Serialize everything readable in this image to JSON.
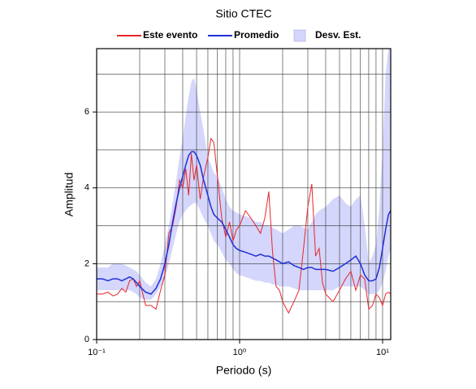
{
  "chart_data": {
    "type": "line",
    "title": "Sitio CTEC",
    "xlabel": "Periodo (s)",
    "ylabel": "Amplitud",
    "log_x": true,
    "grid": true,
    "legend": "top",
    "xlim": [
      0.1,
      11.4
    ],
    "ylim": [
      0,
      7.67
    ],
    "xticks": [
      {
        "value": 0.1,
        "label": "10⁻¹"
      },
      {
        "value": 1,
        "label": "10⁰"
      },
      {
        "value": 10,
        "label": "10¹"
      }
    ],
    "xminor": [
      0.2,
      0.3,
      0.4,
      0.5,
      0.6,
      0.7,
      0.8,
      0.9,
      2,
      3,
      4,
      5,
      6,
      7,
      8,
      9
    ],
    "yticks": [
      0,
      2,
      4,
      6
    ],
    "yminor": [
      1,
      3,
      5,
      7
    ],
    "x": [
      0.1,
      0.11,
      0.12,
      0.13,
      0.14,
      0.15,
      0.16,
      0.17,
      0.18,
      0.19,
      0.2,
      0.22,
      0.24,
      0.26,
      0.28,
      0.3,
      0.32,
      0.34,
      0.36,
      0.38,
      0.4,
      0.42,
      0.44,
      0.46,
      0.48,
      0.5,
      0.53,
      0.56,
      0.6,
      0.63,
      0.66,
      0.7,
      0.75,
      0.8,
      0.85,
      0.9,
      0.95,
      1.0,
      1.1,
      1.2,
      1.3,
      1.4,
      1.5,
      1.6,
      1.7,
      1.8,
      1.9,
      2.0,
      2.2,
      2.4,
      2.6,
      2.8,
      3.0,
      3.2,
      3.4,
      3.6,
      3.8,
      4.0,
      4.5,
      5.0,
      5.5,
      6.0,
      6.5,
      7.0,
      7.5,
      8.0,
      8.5,
      9.0,
      9.5,
      10,
      10.5,
      11,
      11.4
    ],
    "series": [
      {
        "name": "Este evento",
        "color": "#e8262b",
        "values": [
          1.2,
          1.2,
          1.25,
          1.15,
          1.2,
          1.35,
          1.25,
          1.55,
          1.6,
          1.4,
          1.55,
          0.9,
          0.9,
          0.8,
          1.3,
          1.7,
          2.8,
          3.0,
          3.5,
          4.2,
          4.0,
          4.5,
          3.8,
          4.9,
          4.2,
          4.6,
          3.7,
          4.3,
          4.8,
          5.3,
          5.2,
          4.3,
          3.2,
          2.7,
          3.1,
          2.6,
          2.9,
          3.0,
          3.4,
          3.2,
          3.0,
          2.8,
          3.2,
          3.9,
          2.3,
          1.4,
          1.3,
          1.0,
          0.7,
          1.0,
          1.3,
          2.4,
          3.5,
          4.1,
          2.2,
          2.4,
          1.5,
          1.2,
          1.0,
          1.3,
          1.6,
          1.8,
          1.3,
          1.7,
          1.6,
          0.8,
          0.9,
          1.2,
          1.1,
          0.9,
          1.2,
          1.25,
          1.2
        ]
      },
      {
        "name": "Promedio",
        "color": "#1f2fd6",
        "values": [
          1.6,
          1.6,
          1.55,
          1.6,
          1.6,
          1.55,
          1.6,
          1.65,
          1.6,
          1.5,
          1.4,
          1.25,
          1.2,
          1.35,
          1.6,
          2.0,
          2.5,
          3.1,
          3.6,
          4.0,
          4.3,
          4.6,
          4.85,
          4.95,
          4.95,
          4.85,
          4.6,
          4.2,
          3.8,
          3.5,
          3.3,
          3.2,
          3.1,
          2.9,
          2.7,
          2.5,
          2.4,
          2.35,
          2.3,
          2.25,
          2.2,
          2.25,
          2.2,
          2.2,
          2.15,
          2.1,
          2.05,
          2.0,
          2.05,
          1.95,
          1.9,
          1.85,
          1.9,
          1.9,
          1.85,
          1.85,
          1.85,
          1.85,
          1.8,
          1.9,
          2.0,
          2.1,
          2.2,
          2.0,
          1.7,
          1.55,
          1.55,
          1.6,
          1.9,
          2.4,
          2.9,
          3.3,
          3.4
        ]
      },
      {
        "name": "Desv. Est.",
        "color": "#d4d6fb",
        "lower": [
          1.3,
          1.3,
          1.3,
          1.3,
          1.3,
          1.3,
          1.3,
          1.3,
          1.25,
          1.2,
          1.1,
          1.05,
          1.05,
          1.2,
          1.4,
          1.6,
          2.0,
          2.4,
          2.8,
          3.1,
          3.3,
          3.4,
          3.5,
          3.55,
          3.6,
          3.6,
          3.4,
          3.2,
          3.0,
          2.8,
          2.6,
          2.5,
          2.3,
          2.1,
          2.0,
          1.85,
          1.75,
          1.7,
          1.65,
          1.6,
          1.55,
          1.55,
          1.5,
          1.5,
          1.45,
          1.45,
          1.4,
          1.4,
          1.4,
          1.35,
          1.3,
          1.3,
          1.3,
          1.3,
          1.3,
          1.3,
          1.3,
          1.3,
          1.3,
          1.4,
          1.4,
          1.4,
          1.4,
          1.4,
          1.3,
          1.2,
          1.2,
          1.2,
          1.3,
          1.5,
          1.8,
          2.2,
          2.4
        ],
        "upper": [
          1.9,
          1.9,
          1.9,
          2.0,
          2.0,
          2.0,
          1.95,
          1.9,
          1.85,
          1.8,
          1.7,
          1.5,
          1.4,
          1.6,
          2.0,
          2.5,
          3.0,
          3.6,
          4.2,
          4.8,
          5.3,
          5.9,
          6.4,
          6.8,
          6.9,
          6.6,
          6.0,
          5.5,
          4.8,
          4.6,
          4.4,
          4.3,
          4.0,
          3.7,
          3.5,
          3.4,
          3.35,
          3.3,
          3.25,
          3.2,
          3.1,
          3.1,
          3.0,
          3.0,
          2.95,
          2.9,
          2.85,
          2.8,
          2.9,
          3.0,
          3.0,
          2.95,
          2.9,
          3.1,
          3.3,
          3.4,
          3.45,
          3.5,
          3.7,
          3.8,
          3.6,
          3.5,
          3.7,
          3.8,
          3.0,
          2.0,
          2.2,
          2.5,
          3.5,
          5.0,
          7.0,
          7.67,
          7.67
        ]
      }
    ]
  }
}
